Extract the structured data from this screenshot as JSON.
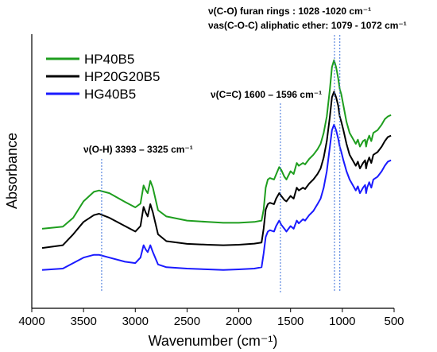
{
  "chart_data": {
    "type": "line",
    "xlabel": "Wavenumber (cm⁻¹)",
    "ylabel": "Absorbance",
    "xlim": [
      4000,
      500
    ],
    "x_reversed": true,
    "x_ticks": [
      4000,
      3500,
      3000,
      2500,
      2000,
      1500,
      1000,
      500
    ],
    "y_ticks_shown": false,
    "grid": false,
    "legend": "top-left",
    "series": [
      {
        "name": "HP40B5",
        "color": "#1e9e1e",
        "points": [
          [
            3900,
            0.29
          ],
          [
            3700,
            0.298
          ],
          [
            3600,
            0.33
          ],
          [
            3500,
            0.39
          ],
          [
            3400,
            0.425
          ],
          [
            3350,
            0.43
          ],
          [
            3250,
            0.42
          ],
          [
            3100,
            0.388
          ],
          [
            3000,
            0.368
          ],
          [
            2950,
            0.382
          ],
          [
            2920,
            0.448
          ],
          [
            2900,
            0.432
          ],
          [
            2880,
            0.42
          ],
          [
            2855,
            0.465
          ],
          [
            2830,
            0.44
          ],
          [
            2780,
            0.358
          ],
          [
            2700,
            0.335
          ],
          [
            2500,
            0.32
          ],
          [
            2300,
            0.315
          ],
          [
            2150,
            0.312
          ],
          [
            2000,
            0.312
          ],
          [
            1850,
            0.315
          ],
          [
            1780,
            0.32
          ],
          [
            1760,
            0.36
          ],
          [
            1740,
            0.44
          ],
          [
            1720,
            0.47
          ],
          [
            1700,
            0.475
          ],
          [
            1660,
            0.47
          ],
          [
            1640,
            0.488
          ],
          [
            1610,
            0.515
          ],
          [
            1590,
            0.505
          ],
          [
            1560,
            0.48
          ],
          [
            1540,
            0.47
          ],
          [
            1500,
            0.5
          ],
          [
            1470,
            0.49
          ],
          [
            1440,
            0.53
          ],
          [
            1420,
            0.52
          ],
          [
            1380,
            0.53
          ],
          [
            1360,
            0.525
          ],
          [
            1320,
            0.545
          ],
          [
            1280,
            0.56
          ],
          [
            1240,
            0.58
          ],
          [
            1210,
            0.6
          ],
          [
            1180,
            0.64
          ],
          [
            1150,
            0.7
          ],
          [
            1120,
            0.8
          ],
          [
            1100,
            0.88
          ],
          [
            1080,
            0.905
          ],
          [
            1060,
            0.88
          ],
          [
            1040,
            0.84
          ],
          [
            1025,
            0.8
          ],
          [
            1010,
            0.78
          ],
          [
            990,
            0.74
          ],
          [
            960,
            0.68
          ],
          [
            930,
            0.64
          ],
          [
            900,
            0.62
          ],
          [
            870,
            0.6
          ],
          [
            850,
            0.615
          ],
          [
            830,
            0.59
          ],
          [
            800,
            0.61
          ],
          [
            780,
            0.615
          ],
          [
            770,
            0.59
          ],
          [
            760,
            0.61
          ],
          [
            740,
            0.63
          ],
          [
            720,
            0.61
          ],
          [
            700,
            0.64
          ],
          [
            660,
            0.65
          ],
          [
            620,
            0.67
          ],
          [
            590,
            0.69
          ],
          [
            560,
            0.7
          ],
          [
            530,
            0.705
          ]
        ]
      },
      {
        "name": "HP20G20B5",
        "color": "#000000",
        "points": [
          [
            3900,
            0.22
          ],
          [
            3700,
            0.23
          ],
          [
            3600,
            0.27
          ],
          [
            3500,
            0.315
          ],
          [
            3400,
            0.34
          ],
          [
            3350,
            0.345
          ],
          [
            3250,
            0.33
          ],
          [
            3100,
            0.3
          ],
          [
            3000,
            0.28
          ],
          [
            2950,
            0.3
          ],
          [
            2920,
            0.37
          ],
          [
            2900,
            0.35
          ],
          [
            2880,
            0.335
          ],
          [
            2855,
            0.38
          ],
          [
            2830,
            0.35
          ],
          [
            2780,
            0.27
          ],
          [
            2700,
            0.245
          ],
          [
            2500,
            0.235
          ],
          [
            2300,
            0.232
          ],
          [
            2150,
            0.23
          ],
          [
            2000,
            0.232
          ],
          [
            1850,
            0.236
          ],
          [
            1780,
            0.24
          ],
          [
            1760,
            0.29
          ],
          [
            1740,
            0.36
          ],
          [
            1720,
            0.38
          ],
          [
            1700,
            0.385
          ],
          [
            1660,
            0.38
          ],
          [
            1640,
            0.4
          ],
          [
            1610,
            0.42
          ],
          [
            1590,
            0.41
          ],
          [
            1560,
            0.395
          ],
          [
            1540,
            0.39
          ],
          [
            1500,
            0.41
          ],
          [
            1470,
            0.4
          ],
          [
            1440,
            0.44
          ],
          [
            1420,
            0.43
          ],
          [
            1380,
            0.44
          ],
          [
            1360,
            0.435
          ],
          [
            1320,
            0.455
          ],
          [
            1280,
            0.47
          ],
          [
            1240,
            0.49
          ],
          [
            1210,
            0.51
          ],
          [
            1180,
            0.55
          ],
          [
            1150,
            0.61
          ],
          [
            1120,
            0.7
          ],
          [
            1100,
            0.77
          ],
          [
            1080,
            0.79
          ],
          [
            1060,
            0.77
          ],
          [
            1040,
            0.74
          ],
          [
            1025,
            0.7
          ],
          [
            1010,
            0.68
          ],
          [
            990,
            0.65
          ],
          [
            960,
            0.6
          ],
          [
            930,
            0.56
          ],
          [
            900,
            0.54
          ],
          [
            870,
            0.52
          ],
          [
            850,
            0.535
          ],
          [
            830,
            0.51
          ],
          [
            800,
            0.53
          ],
          [
            780,
            0.54
          ],
          [
            770,
            0.51
          ],
          [
            760,
            0.53
          ],
          [
            740,
            0.55
          ],
          [
            720,
            0.53
          ],
          [
            700,
            0.56
          ],
          [
            660,
            0.57
          ],
          [
            620,
            0.59
          ],
          [
            590,
            0.61
          ],
          [
            560,
            0.625
          ],
          [
            530,
            0.63
          ]
        ]
      },
      {
        "name": "HG40B5",
        "color": "#1a1aff",
        "points": [
          [
            3900,
            0.14
          ],
          [
            3700,
            0.145
          ],
          [
            3600,
            0.165
          ],
          [
            3500,
            0.185
          ],
          [
            3400,
            0.195
          ],
          [
            3350,
            0.195
          ],
          [
            3250,
            0.185
          ],
          [
            3100,
            0.17
          ],
          [
            3000,
            0.165
          ],
          [
            2950,
            0.185
          ],
          [
            2920,
            0.23
          ],
          [
            2900,
            0.215
          ],
          [
            2880,
            0.205
          ],
          [
            2855,
            0.23
          ],
          [
            2830,
            0.205
          ],
          [
            2780,
            0.16
          ],
          [
            2700,
            0.15
          ],
          [
            2500,
            0.145
          ],
          [
            2300,
            0.142
          ],
          [
            2150,
            0.14
          ],
          [
            2000,
            0.142
          ],
          [
            1850,
            0.145
          ],
          [
            1780,
            0.15
          ],
          [
            1760,
            0.2
          ],
          [
            1740,
            0.26
          ],
          [
            1720,
            0.28
          ],
          [
            1700,
            0.285
          ],
          [
            1660,
            0.28
          ],
          [
            1640,
            0.3
          ],
          [
            1610,
            0.32
          ],
          [
            1590,
            0.305
          ],
          [
            1560,
            0.29
          ],
          [
            1540,
            0.28
          ],
          [
            1500,
            0.3
          ],
          [
            1470,
            0.29
          ],
          [
            1440,
            0.32
          ],
          [
            1420,
            0.31
          ],
          [
            1380,
            0.325
          ],
          [
            1360,
            0.32
          ],
          [
            1320,
            0.34
          ],
          [
            1280,
            0.355
          ],
          [
            1240,
            0.38
          ],
          [
            1210,
            0.4
          ],
          [
            1180,
            0.44
          ],
          [
            1150,
            0.5
          ],
          [
            1120,
            0.59
          ],
          [
            1100,
            0.65
          ],
          [
            1080,
            0.67
          ],
          [
            1060,
            0.65
          ],
          [
            1040,
            0.62
          ],
          [
            1025,
            0.59
          ],
          [
            1010,
            0.57
          ],
          [
            990,
            0.54
          ],
          [
            960,
            0.5
          ],
          [
            930,
            0.47
          ],
          [
            900,
            0.45
          ],
          [
            870,
            0.43
          ],
          [
            850,
            0.445
          ],
          [
            830,
            0.42
          ],
          [
            800,
            0.44
          ],
          [
            780,
            0.45
          ],
          [
            770,
            0.42
          ],
          [
            760,
            0.44
          ],
          [
            740,
            0.46
          ],
          [
            720,
            0.44
          ],
          [
            700,
            0.47
          ],
          [
            660,
            0.48
          ],
          [
            620,
            0.5
          ],
          [
            590,
            0.52
          ],
          [
            560,
            0.535
          ],
          [
            530,
            0.54
          ]
        ]
      }
    ],
    "annotations": [
      {
        "id": "oh",
        "text": "ν(O-H) 3393 – 3325 cm⁻¹",
        "lines_at": [
          3325
        ]
      },
      {
        "id": "cc",
        "text": "ν(C=C) 1600 – 1596 cm⁻¹",
        "lines_at": [
          1598
        ]
      },
      {
        "id": "co",
        "text": "ν(C-O) furan rings : 1028 -1020 cm⁻¹",
        "lines_at": [
          1024
        ]
      },
      {
        "id": "coc",
        "text": "νas(C-O-C) aliphatic ether: 1079 - 1072 cm⁻¹",
        "lines_at": [
          1076
        ]
      }
    ]
  }
}
